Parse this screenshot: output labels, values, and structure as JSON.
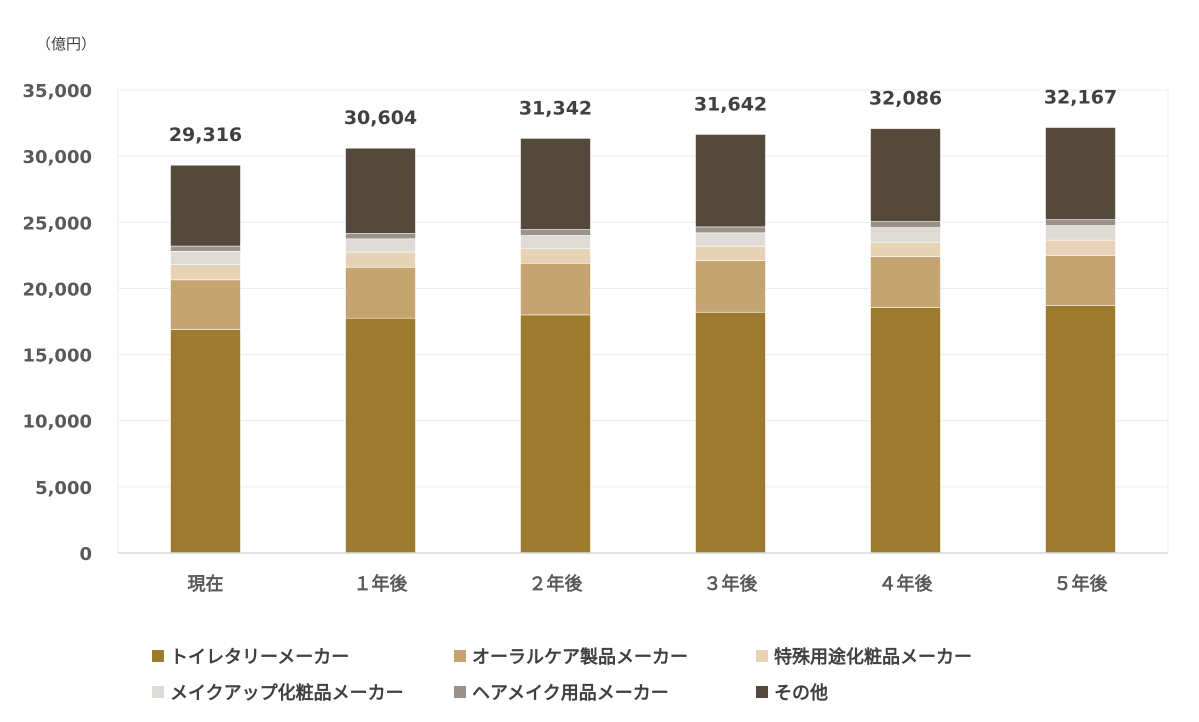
{
  "chart_data": {
    "type": "bar",
    "stacked": true,
    "unit_label": "（億円）",
    "categories": [
      "現在",
      "１年後",
      "２年後",
      "３年後",
      "４年後",
      "５年後"
    ],
    "totals": [
      "29,316",
      "30,604",
      "31,342",
      "31,642",
      "32,086",
      "32,167"
    ],
    "series": [
      {
        "name": "トイレタリーメーカー",
        "color": "#9c7a2e",
        "values": [
          16900,
          17750,
          18000,
          18200,
          18550,
          18700
        ]
      },
      {
        "name": "オーラルケア製品メーカー",
        "color": "#c4a470",
        "values": [
          3750,
          3850,
          3900,
          3900,
          3850,
          3800
        ]
      },
      {
        "name": "特殊用途化粧品メーカー",
        "color": "#e6d2b5",
        "values": [
          1150,
          1150,
          1100,
          1100,
          1100,
          1150
        ]
      },
      {
        "name": "メイクアップ化粧品メーカー",
        "color": "#dedad5",
        "values": [
          1000,
          1000,
          1000,
          1000,
          1100,
          1100
        ]
      },
      {
        "name": "ヘアメイク用品メーカー",
        "color": "#9a928a",
        "values": [
          400,
          400,
          450,
          450,
          450,
          450
        ]
      },
      {
        "name": "その他",
        "color": "#54493a",
        "values": [
          6116,
          6454,
          6892,
          6992,
          7036,
          6967
        ]
      }
    ],
    "ylim": [
      0,
      35000
    ],
    "yticks": [
      "0",
      "5,000",
      "10,000",
      "15,000",
      "20,000",
      "25,000",
      "30,000",
      "35,000"
    ],
    "ytick_values": [
      0,
      5000,
      10000,
      15000,
      20000,
      25000,
      30000,
      35000
    ],
    "grid": true,
    "legend_position": "bottom"
  }
}
